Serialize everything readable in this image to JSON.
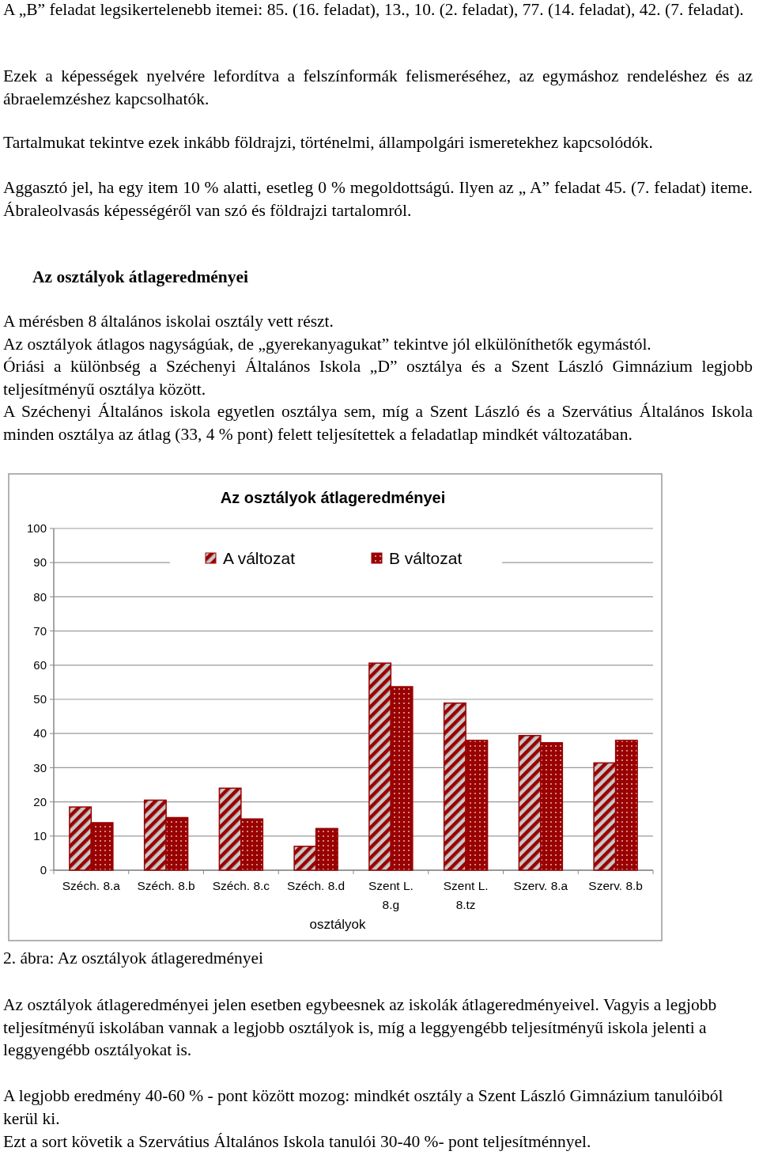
{
  "chart_data": {
    "type": "bar",
    "title": "Az osztályok átlageredményei",
    "xlabel": "osztályok",
    "categories": [
      "Széch. 8.a",
      "Széch. 8.b",
      "Széch. 8.c",
      "Széch. 8.d",
      "Szent L. 8.g",
      "Szent L. 8.tz",
      "Szerv. 8.a",
      "Szerv. 8.b"
    ],
    "series": [
      {
        "name": "A változat",
        "color": "#990000",
        "values": [
          18.5,
          20.5,
          24,
          7,
          60.6,
          48.9,
          39.4,
          31.4
        ]
      },
      {
        "name": "B változat",
        "color": "#990000",
        "values": [
          13.9,
          15.4,
          15,
          12.2,
          53.7,
          38,
          37.3,
          38
        ]
      }
    ],
    "ylim": [
      0,
      100
    ],
    "yticks": [
      0,
      10,
      20,
      30,
      40,
      50,
      60,
      70,
      80,
      90,
      100
    ],
    "grid": "y",
    "legend": "top",
    "annotations": [
      "A „B” feladat legsikertelenebb itemei: 85. (16. feladat), 13., 10. (2. feladat), 77. (14. feladat), 42. (7. feladat).",
      "Ezek a képességek nyelvére lefordítva a felszínformák felismeréséhez, az egymáshoz rendeléshez és az ábraelemzéshez kapcsolhatók.",
      "Tartalmukat tekintve ezek inkább földrajzi, történelmi, állampolgári ismeretekhez kapcsolódók.",
      "Aggasztó jel, ha egy item 10 % alatti, esetleg 0 % megoldottságú. Ilyen az „ A” feladat 45. (7. feladat) iteme. Ábraleolvasás képességéről van szó és földrajzi tartalomról.",
      "Az osztályok átlageredményei",
      "A mérésben 8 általános iskolai osztály vett részt.",
      "Az osztályok átlagos nagyságúak, de „gyerekanyagukat” tekintve jól elkülöníthetők egymástól.",
      "Óriási a különbség a Széchenyi Általános Iskola „D” osztálya és a Szent László Gimnázium legjobb teljesítményű osztálya között.",
      "A Széchenyi Általános iskola egyetlen osztálya sem, míg a Szent László és a Szervátius Általános Iskola minden osztálya az átlag (33, 4 % pont) felett teljesítettek a feladatlap mindkét változatában.",
      "2. ábra: Az osztályok átlageredményei",
      "Az osztályok átlageredményei jelen esetben egybeesnek az iskolák átlageredményeivel. Vagyis a legjobb teljesítményű iskolában vannak a legjobb osztályok is, míg a leggyengébb teljesítményű iskola jelenti a leggyengébb osztályokat is.",
      "A legjobb eredmény 40-60 % - pont között mozog: mindkét osztály a Szent László Gimnázium tanulóiból kerül ki.",
      "Ezt a sort követik a Szervátius Általános Iskola tanulói 30-40 %- pont teljesítménnyel."
    ]
  }
}
